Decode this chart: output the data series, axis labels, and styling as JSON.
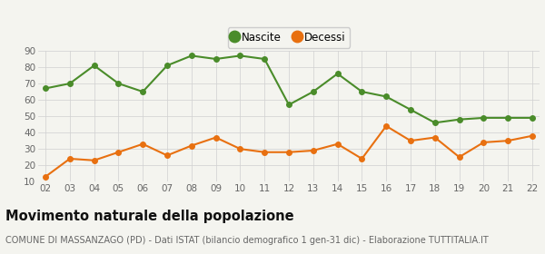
{
  "years": [
    "02",
    "03",
    "04",
    "05",
    "06",
    "07",
    "08",
    "09",
    "10",
    "11",
    "12",
    "13",
    "14",
    "15",
    "16",
    "17",
    "18",
    "19",
    "20",
    "21",
    "22"
  ],
  "nascite": [
    67,
    70,
    81,
    70,
    65,
    81,
    87,
    85,
    87,
    85,
    57,
    65,
    76,
    65,
    62,
    54,
    46,
    48,
    49,
    49,
    49
  ],
  "decessi": [
    13,
    24,
    23,
    28,
    33,
    26,
    32,
    37,
    30,
    28,
    28,
    29,
    33,
    24,
    44,
    35,
    37,
    25,
    34,
    35,
    38
  ],
  "nascite_color": "#4a8c2a",
  "decessi_color": "#e87010",
  "bg_color": "#f4f4ef",
  "grid_color": "#d0d0d0",
  "ylim": [
    10,
    90
  ],
  "yticks": [
    10,
    20,
    30,
    40,
    50,
    60,
    70,
    80,
    90
  ],
  "title": "Movimento naturale della popolazione",
  "subtitle": "COMUNE DI MASSANZAGO (PD) - Dati ISTAT (bilancio demografico 1 gen-31 dic) - Elaborazione TUTTITALIA.IT",
  "legend_nascite": "Nascite",
  "legend_decessi": "Decessi",
  "title_fontsize": 10.5,
  "subtitle_fontsize": 7.0,
  "legend_fontsize": 8.5,
  "tick_fontsize": 7.5,
  "marker_size": 4.0,
  "line_width": 1.5
}
